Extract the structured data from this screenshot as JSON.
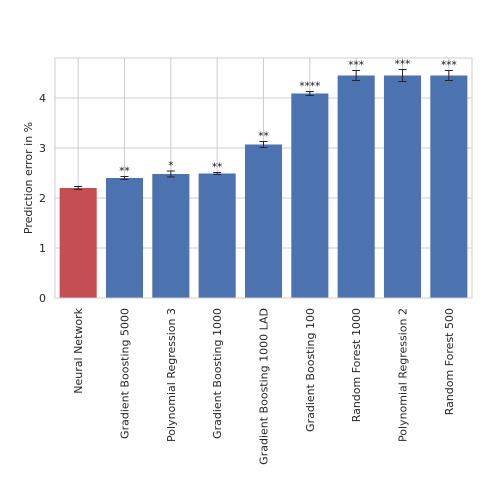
{
  "chart_data": {
    "type": "bar",
    "title": "",
    "xlabel": "",
    "ylabel": "Prediction error in %",
    "ylim": [
      0,
      4.8
    ],
    "yticks": [
      0,
      1,
      2,
      3,
      4
    ],
    "grid": true,
    "categories": [
      "Neural Network",
      "Gradient Boosting 5000",
      "Polynomial Regression 3",
      "Gradient Boosting 1000",
      "Gradient Boosting 1000 LAD",
      "Gradient Boosting 100",
      "Random Forest 1000",
      "Polynomial Regression 2",
      "Random Forest 500"
    ],
    "values": [
      2.2,
      2.4,
      2.48,
      2.49,
      3.07,
      4.09,
      4.45,
      4.45,
      4.45
    ],
    "errors": [
      0.03,
      0.03,
      0.06,
      0.02,
      0.06,
      0.04,
      0.1,
      0.12,
      0.1
    ],
    "significance": [
      "",
      "**",
      "*",
      "**",
      "**",
      "****",
      "***",
      "***",
      "***"
    ],
    "colors": [
      "#c44e52",
      "#4c72b0",
      "#4c72b0",
      "#4c72b0",
      "#4c72b0",
      "#4c72b0",
      "#4c72b0",
      "#4c72b0",
      "#4c72b0"
    ]
  }
}
